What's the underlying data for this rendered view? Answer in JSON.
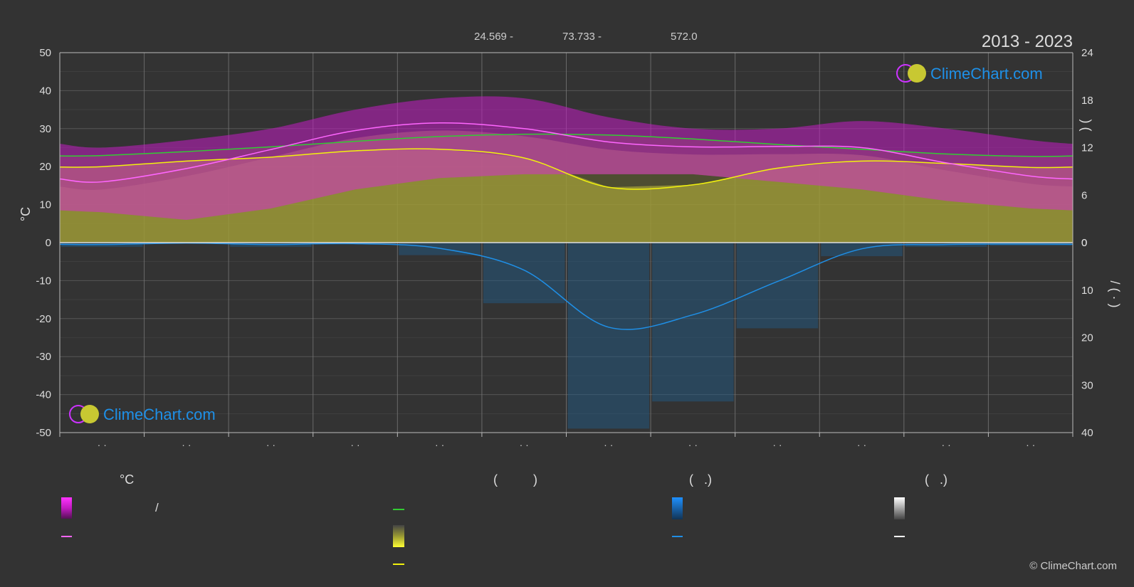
{
  "header": {
    "stats": [
      "24.569 -",
      "73.733 -",
      "572.0"
    ],
    "period": "2013 - 2023"
  },
  "colors": {
    "background": "#333333",
    "sun_band": "#b8b342",
    "temp_band": "#c21bc2",
    "temp_lower_band": "#c2668f",
    "daylight_line": "#33cc33",
    "sunshine_line": "#f2f20d",
    "temp_line": "#ff66ff",
    "precip_line": "#1f8fe6",
    "grid": "#5a5a5a",
    "brand": "#1e90e8"
  },
  "logos": [
    {
      "text": "ClimeChart.com",
      "position": "top-right"
    },
    {
      "text": "ClimeChart.com",
      "position": "bottom-left"
    }
  ],
  "chart_data": {
    "type": "area",
    "months": 12,
    "left_axis": {
      "label": "°C",
      "ticks": [
        50,
        40,
        30,
        20,
        10,
        0,
        -10,
        -20,
        -30,
        -40,
        -50
      ],
      "range": [
        -50,
        50
      ]
    },
    "right_axis_upper": {
      "label": ")       (",
      "ticks": [
        24,
        18,
        12,
        6,
        0
      ],
      "range": [
        0,
        24
      ]
    },
    "right_axis_lower": {
      "label": "/       (  · )",
      "ticks": [
        0,
        10,
        20,
        30,
        40
      ],
      "range": [
        0,
        40
      ]
    },
    "x_tick_labels": [
      "· ·",
      "· ·",
      "· ·",
      "· ·",
      "· ·",
      "· ·",
      "· ·",
      "· ·",
      "· ·",
      "· ·",
      "· ·",
      "· ·"
    ],
    "series": [
      {
        "name": "temp_max_band_top",
        "role": "band",
        "values": [
          25,
          27,
          30,
          35,
          38,
          38,
          33,
          30,
          30,
          32,
          30,
          27
        ]
      },
      {
        "name": "temp_min_band_bottom",
        "role": "band",
        "values": [
          8,
          6,
          9,
          14,
          17,
          18,
          18,
          18,
          16,
          14,
          11,
          9
        ]
      },
      {
        "name": "daylight_hours",
        "role": "line",
        "values": [
          11.0,
          11.5,
          12.1,
          12.8,
          13.4,
          13.7,
          13.6,
          13.1,
          12.4,
          11.8,
          11.2,
          10.9
        ]
      },
      {
        "name": "sunshine_hours",
        "role": "line",
        "values": [
          9.6,
          10.3,
          10.8,
          11.6,
          11.8,
          10.7,
          7.0,
          7.3,
          9.4,
          10.3,
          10.0,
          9.5
        ]
      },
      {
        "name": "avg_daily_max_temp",
        "role": "line",
        "values": [
          16.0,
          19.5,
          24.5,
          29.5,
          31.5,
          30.0,
          26.5,
          25.2,
          25.3,
          25.0,
          21.0,
          17.5
        ]
      },
      {
        "name": "precipitation_mm",
        "role": "line",
        "values": [
          0.4,
          0.1,
          0.4,
          0.2,
          1.2,
          5.8,
          17.8,
          15.2,
          8.2,
          1.3,
          0.4,
          0.3
        ]
      }
    ],
    "grid": true
  },
  "legend": {
    "headers": [
      {
        "text": "°C"
      },
      {
        "text": "(          )"
      },
      {
        "text": "(   .)"
      },
      {
        "text": "(   .)"
      }
    ],
    "items": [
      {
        "swatch": "gradient-magenta",
        "text": "/"
      },
      {
        "swatch": "line-pink",
        "text": ""
      },
      {
        "swatch": "line-green",
        "text": ""
      },
      {
        "swatch": "gradient-yellow",
        "text": ""
      },
      {
        "swatch": "line-yellow",
        "text": ""
      },
      {
        "swatch": "gradient-blue",
        "text": ""
      },
      {
        "swatch": "line-blue",
        "text": ""
      },
      {
        "swatch": "gradient-white",
        "text": ""
      },
      {
        "swatch": "line-white",
        "text": ""
      }
    ]
  },
  "footer": {
    "copyright": "© ClimeChart.com"
  }
}
